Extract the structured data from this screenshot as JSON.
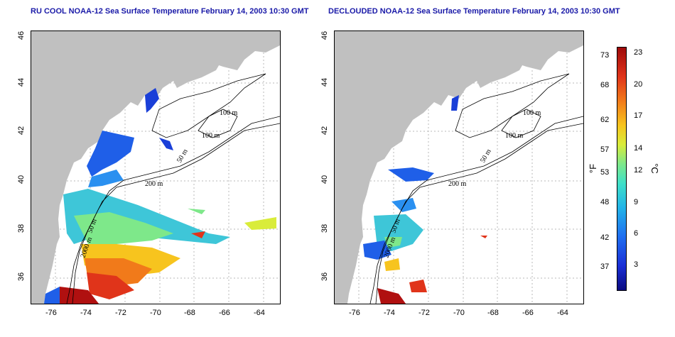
{
  "titles": {
    "left": "RU COOL NOAA-12 Sea Surface Temperature February 14, 2003 10:30 GMT",
    "right": "DECLOUDED NOAA-12 Sea Surface Temperature February 14, 2003 10:30 GMT"
  },
  "lat_ticks": [
    "46",
    "44",
    "42",
    "40",
    "38",
    "36"
  ],
  "lon_ticks": [
    "-76",
    "-74",
    "-72",
    "-70",
    "-68",
    "-66",
    "-64"
  ],
  "contours": {
    "left": [
      "100 m",
      "100 m",
      "50 m",
      "200 m",
      "2000 m",
      "50 m"
    ],
    "right": [
      "100 m",
      "100 m",
      "50 m",
      "200 m",
      "2000 m",
      "50 m"
    ]
  },
  "colorbar": {
    "fahrenheit_ticks": [
      "73",
      "68",
      "62",
      "57",
      "53",
      "48",
      "42",
      "37"
    ],
    "celsius_ticks": [
      "23",
      "20",
      "17",
      "14",
      "12",
      "9",
      "6",
      "3"
    ],
    "unit_f": "°F",
    "unit_c": "°C"
  },
  "colors": {
    "land": "#c0c0c0",
    "title": "#1a1aa8",
    "grid": "#b8b8b8"
  }
}
